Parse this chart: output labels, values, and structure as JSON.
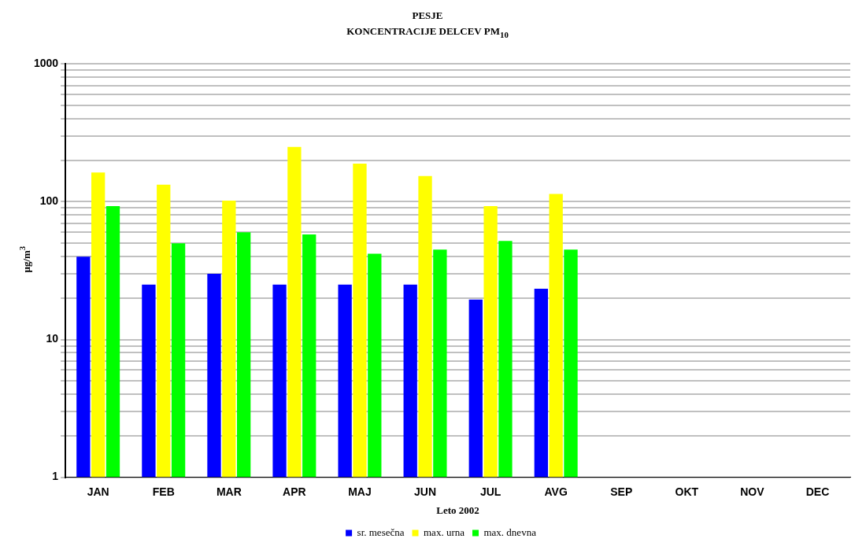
{
  "chart_data": {
    "type": "bar",
    "title": "PESJE",
    "subtitle": "KONCENTRACIJE  DELCEV PM$_{10}$",
    "xlabel": "Leto 2002",
    "ylabel": "µg/m$^{3}$",
    "categories": [
      "JAN",
      "FEB",
      "MAR",
      "APR",
      "MAJ",
      "JUN",
      "JUL",
      "AVG",
      "SEP",
      "OKT",
      "NOV",
      "DEC"
    ],
    "series": [
      {
        "name": "sr. mesečna",
        "color": "#0000ff",
        "values": [
          40,
          25,
          30,
          25,
          25,
          25,
          19.5,
          23.4,
          null,
          null,
          null,
          null
        ]
      },
      {
        "name": "max. urna",
        "color": "#ffff00",
        "values": [
          163,
          133,
          102,
          250,
          189,
          154,
          93,
          114,
          null,
          null,
          null,
          null
        ]
      },
      {
        "name": "max. dnevna",
        "color": "#00ff00",
        "values": [
          93,
          50,
          60,
          58,
          42,
          45,
          52,
          45,
          null,
          null,
          null,
          null
        ]
      }
    ],
    "log": "y",
    "ylim": [
      1,
      1000
    ],
    "yticks": [
      1,
      {
        "value": 2,
        "label": null
      },
      {
        "value": 3,
        "label": null
      },
      {
        "value": 4,
        "label": null
      },
      {
        "value": 5,
        "label": null
      },
      {
        "value": 6,
        "label": null
      },
      {
        "value": 7,
        "label": null
      },
      {
        "value": 8,
        "label": null
      },
      {
        "value": 9,
        "label": null
      },
      10,
      {
        "value": 20,
        "label": null
      },
      {
        "value": 30,
        "label": null
      },
      {
        "value": 40,
        "label": null
      },
      {
        "value": 50,
        "label": null
      },
      {
        "value": 60,
        "label": null
      },
      {
        "value": 70,
        "label": null
      },
      {
        "value": 80,
        "label": null
      },
      {
        "value": 90,
        "label": null
      },
      100,
      {
        "value": 200,
        "label": null
      },
      {
        "value": 300,
        "label": null
      },
      {
        "value": 400,
        "label": null
      },
      {
        "value": 500,
        "label": null
      },
      {
        "value": 600,
        "label": null
      },
      {
        "value": 700,
        "label": null
      },
      {
        "value": 800,
        "label": null
      },
      {
        "value": 900,
        "label": null
      },
      1000
    ],
    "grid": "y",
    "legend": "bottom"
  }
}
